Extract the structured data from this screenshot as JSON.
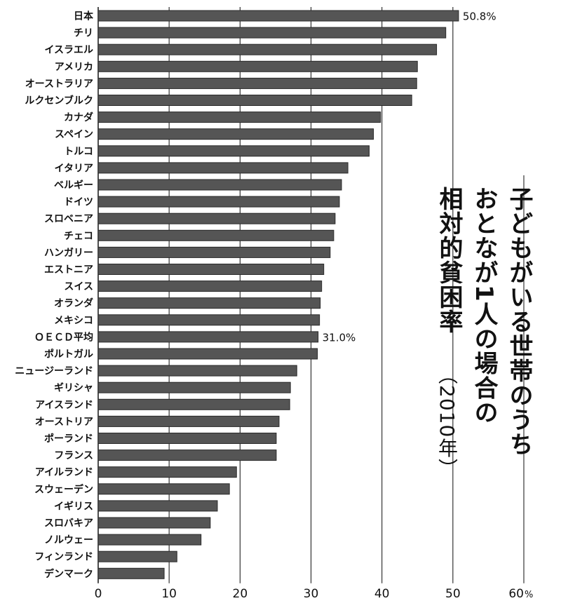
{
  "chart_data": {
    "type": "bar",
    "orientation": "horizontal",
    "title_lines": [
      "子どもがいる世帯のうち",
      "おとなが1人の場合の",
      "相対的貧困率",
      "（2010年）"
    ],
    "categories": [
      "日本",
      "チリ",
      "イスラエル",
      "アメリカ",
      "オーストラリア",
      "ルクセンブルク",
      "カナダ",
      "スペイン",
      "トルコ",
      "イタリア",
      "ベルギー",
      "ドイツ",
      "スロベニア",
      "チェコ",
      "ハンガリー",
      "エストニア",
      "スイス",
      "オランダ",
      "メキシコ",
      "ＯＥＣＤ平均",
      "ポルトガル",
      "ニュージーランド",
      "ギリシャ",
      "アイスランド",
      "オーストリア",
      "ポーランド",
      "フランス",
      "アイルランド",
      "スウェーデン",
      "イギリス",
      "スロバキア",
      "ノルウェー",
      "フィンランド",
      "デンマーク"
    ],
    "values": [
      50.8,
      49.0,
      47.7,
      45.0,
      44.9,
      44.2,
      39.8,
      38.8,
      38.2,
      35.2,
      34.3,
      34.0,
      33.4,
      33.2,
      32.7,
      31.8,
      31.5,
      31.3,
      31.2,
      31.0,
      30.9,
      28.0,
      27.1,
      27.0,
      25.5,
      25.1,
      25.1,
      19.5,
      18.5,
      16.8,
      15.8,
      14.5,
      11.1,
      9.3
    ],
    "value_labels": [
      {
        "category": "日本",
        "text": "50.8%"
      },
      {
        "category": "ＯＥＣＤ平均",
        "text": "31.0%"
      }
    ],
    "xlim": [
      0,
      60
    ],
    "x_ticks": [
      "0",
      "10",
      "20",
      "30",
      "40",
      "50",
      "60"
    ],
    "x_unit": "%",
    "grid": "vertical",
    "bar_color": "#555555"
  }
}
